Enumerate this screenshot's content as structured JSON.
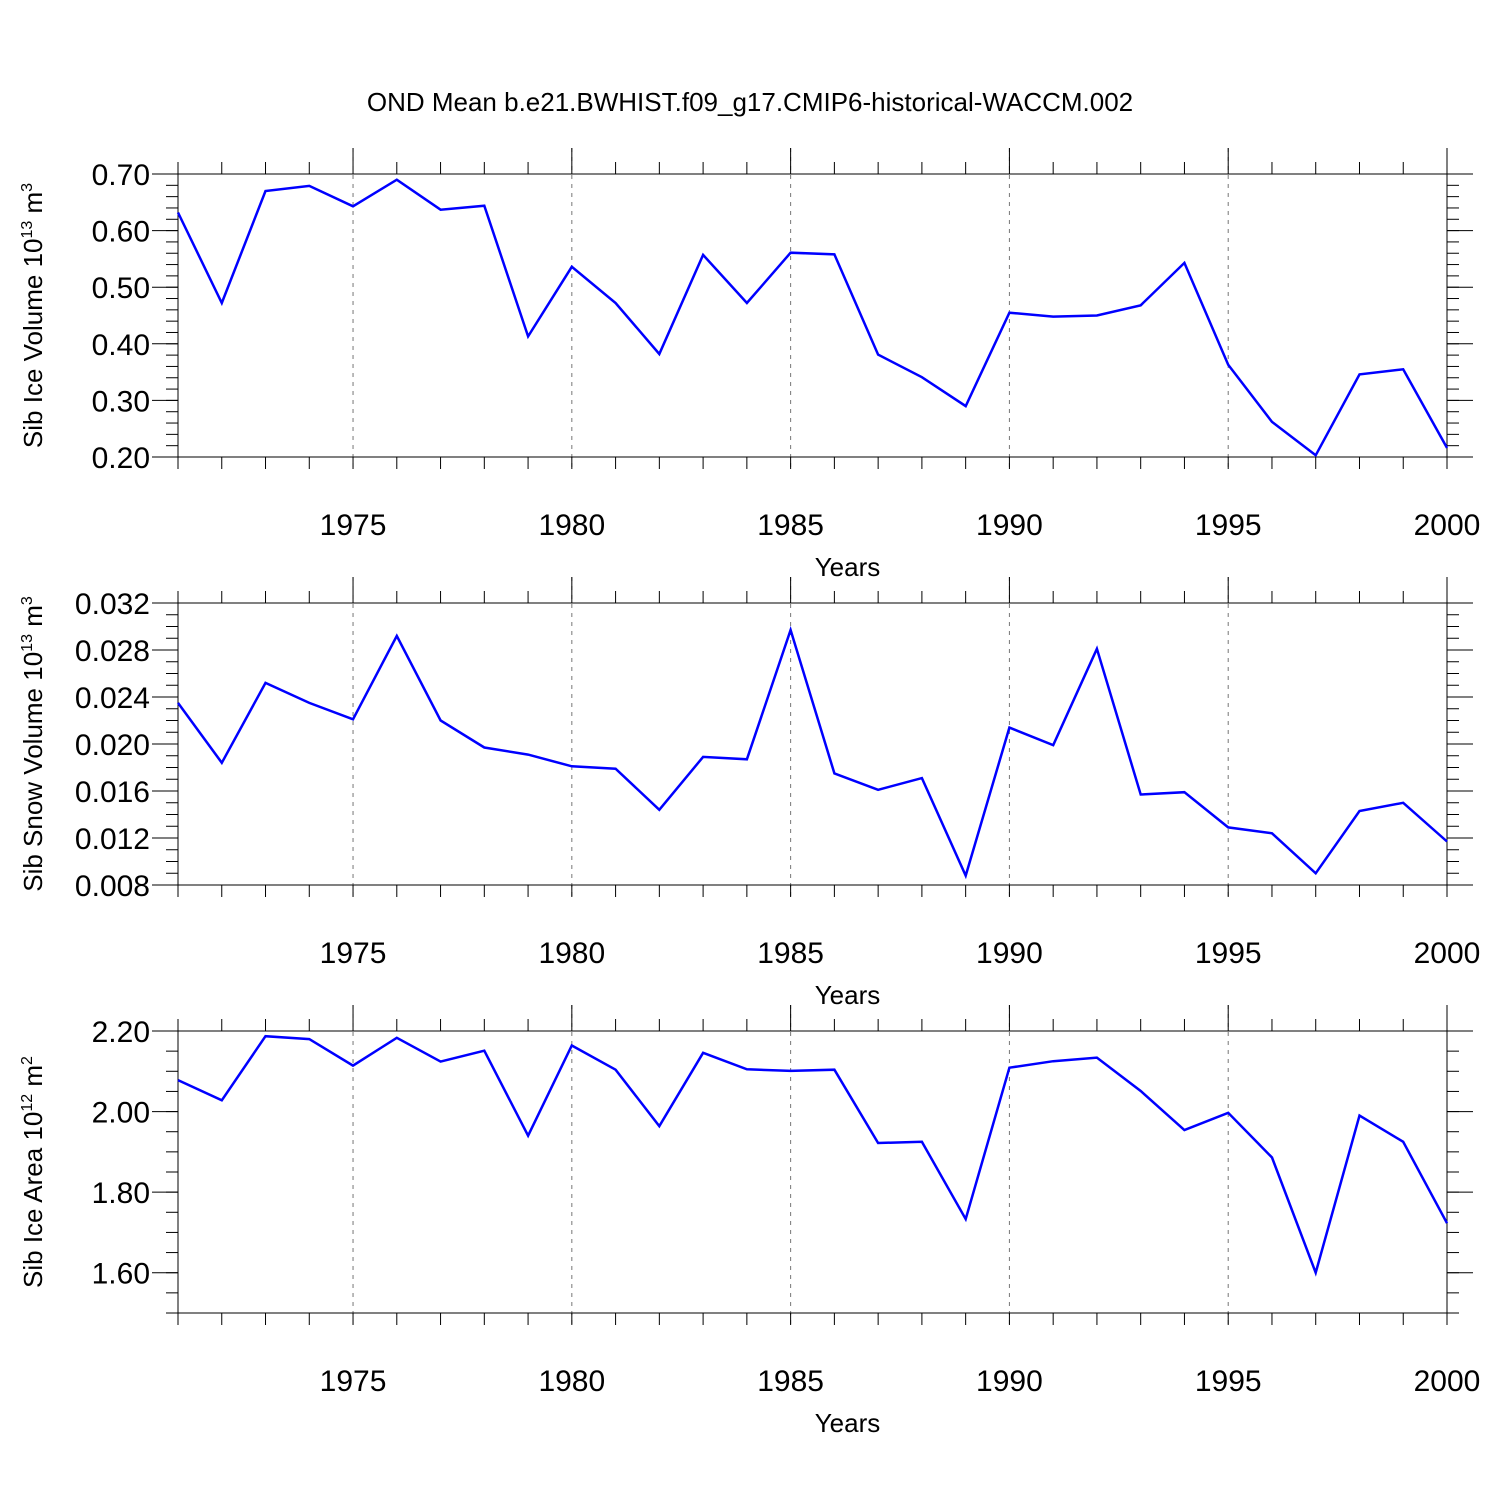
{
  "title": "OND Mean b.e21.BWHIST.f09_g17.CMIP6-historical-WACCM.002",
  "colors": {
    "line": "#0000ff",
    "grid": "#777777",
    "axis": "#000000"
  },
  "chart_data": [
    {
      "type": "line",
      "ylabel": "Sib Ice Volume 10",
      "ylabel_exp": "13",
      "ylabel_unit": " m",
      "ylabel_unit_exp": "3",
      "xlabel": "Years",
      "xlim": [
        1971,
        2000
      ],
      "ylim": [
        0.2,
        0.7
      ],
      "yticks": [
        0.2,
        0.3,
        0.4,
        0.5,
        0.6,
        0.7
      ],
      "yminor": 0.02,
      "ytick_labels": [
        "0.20",
        "0.30",
        "0.40",
        "0.50",
        "0.60",
        "0.70"
      ],
      "xticks": [
        1975,
        1980,
        1985,
        1990,
        1995,
        2000
      ],
      "xtick_labels": [
        "1975",
        "1980",
        "1985",
        "1990",
        "1995",
        "2000"
      ],
      "x": [
        1971,
        1972,
        1973,
        1974,
        1975,
        1976,
        1977,
        1978,
        1979,
        1980,
        1981,
        1982,
        1983,
        1984,
        1985,
        1986,
        1987,
        1988,
        1989,
        1990,
        1991,
        1992,
        1993,
        1994,
        1995,
        1996,
        1997,
        1998,
        1999,
        2000
      ],
      "values": [
        0.632,
        0.472,
        0.67,
        0.679,
        0.643,
        0.69,
        0.637,
        0.644,
        0.413,
        0.536,
        0.472,
        0.382,
        0.557,
        0.472,
        0.561,
        0.558,
        0.381,
        0.341,
        0.29,
        0.455,
        0.448,
        0.45,
        0.468,
        0.543,
        0.363,
        0.262,
        0.203,
        0.346,
        0.355,
        0.216
      ]
    },
    {
      "type": "line",
      "ylabel": "Sib Snow Volume 10",
      "ylabel_exp": "13",
      "ylabel_unit": " m",
      "ylabel_unit_exp": "3",
      "xlabel": "Years",
      "xlim": [
        1971,
        2000
      ],
      "ylim": [
        0.008,
        0.032
      ],
      "yticks": [
        0.008,
        0.012,
        0.016,
        0.02,
        0.024,
        0.028,
        0.032
      ],
      "yminor": 0.001,
      "ytick_labels": [
        "0.008",
        "0.012",
        "0.016",
        "0.020",
        "0.024",
        "0.028",
        "0.032"
      ],
      "xticks": [
        1975,
        1980,
        1985,
        1990,
        1995,
        2000
      ],
      "xtick_labels": [
        "1975",
        "1980",
        "1985",
        "1990",
        "1995",
        "2000"
      ],
      "x": [
        1971,
        1972,
        1973,
        1974,
        1975,
        1976,
        1977,
        1978,
        1979,
        1980,
        1981,
        1982,
        1983,
        1984,
        1985,
        1986,
        1987,
        1988,
        1989,
        1990,
        1991,
        1992,
        1993,
        1994,
        1995,
        1996,
        1997,
        1998,
        1999,
        2000
      ],
      "values": [
        0.0235,
        0.0184,
        0.0252,
        0.0235,
        0.0221,
        0.0292,
        0.022,
        0.0197,
        0.0191,
        0.0181,
        0.0179,
        0.0144,
        0.0189,
        0.0187,
        0.0297,
        0.0175,
        0.0161,
        0.0171,
        0.0088,
        0.0214,
        0.0199,
        0.0281,
        0.0157,
        0.0159,
        0.0129,
        0.0124,
        0.009,
        0.0143,
        0.015,
        0.0117
      ]
    },
    {
      "type": "line",
      "ylabel": "Sib Ice Area 10",
      "ylabel_exp": "12",
      "ylabel_unit": " m",
      "ylabel_unit_exp": "2",
      "xlabel": "Years",
      "xlim": [
        1971,
        2000
      ],
      "ylim": [
        1.5,
        2.2
      ],
      "yticks": [
        1.6,
        1.8,
        2.0,
        2.2
      ],
      "yminor": 0.05,
      "ytick_labels": [
        "1.60",
        "1.80",
        "2.00",
        "2.20"
      ],
      "xticks": [
        1975,
        1980,
        1985,
        1990,
        1995,
        2000
      ],
      "xtick_labels": [
        "1975",
        "1980",
        "1985",
        "1990",
        "1995",
        "2000"
      ],
      "x": [
        1971,
        1972,
        1973,
        1974,
        1975,
        1976,
        1977,
        1978,
        1979,
        1980,
        1981,
        1982,
        1983,
        1984,
        1985,
        1986,
        1987,
        1988,
        1989,
        1990,
        1991,
        1992,
        1993,
        1994,
        1995,
        1996,
        1997,
        1998,
        1999,
        2000
      ],
      "values": [
        2.078,
        2.028,
        2.187,
        2.18,
        2.114,
        2.183,
        2.124,
        2.151,
        1.94,
        2.164,
        2.104,
        1.964,
        2.146,
        2.105,
        2.101,
        2.104,
        1.922,
        1.925,
        1.733,
        2.109,
        2.125,
        2.134,
        2.051,
        1.954,
        1.997,
        1.886,
        1.6,
        1.99,
        1.925,
        1.723
      ]
    }
  ]
}
